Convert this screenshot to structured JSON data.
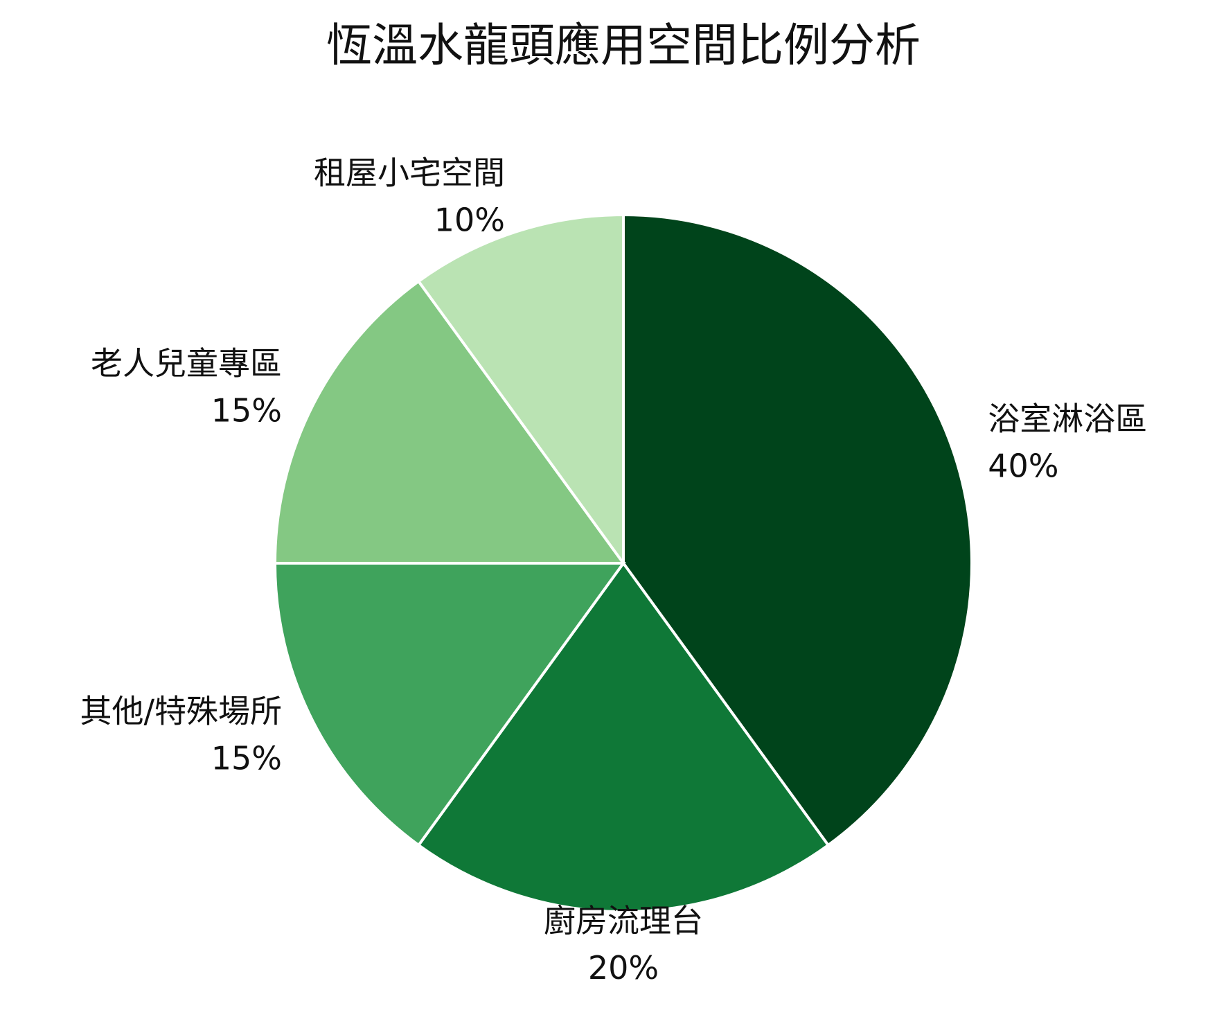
{
  "chart_data": {
    "type": "pie",
    "title": "恆溫水龍頭應用空間比例分析",
    "categories": [
      "浴室淋浴區",
      "廚房流理台",
      "其他/特殊場所",
      "老人兒童專區",
      "租屋小宅空間"
    ],
    "values": [
      40,
      20,
      15,
      15,
      10
    ],
    "value_labels": [
      "40%",
      "20%",
      "15%",
      "15%",
      "10%"
    ],
    "colors": [
      "#00441b",
      "#0f7837",
      "#3fa35c",
      "#84c883",
      "#bae3b3"
    ]
  }
}
